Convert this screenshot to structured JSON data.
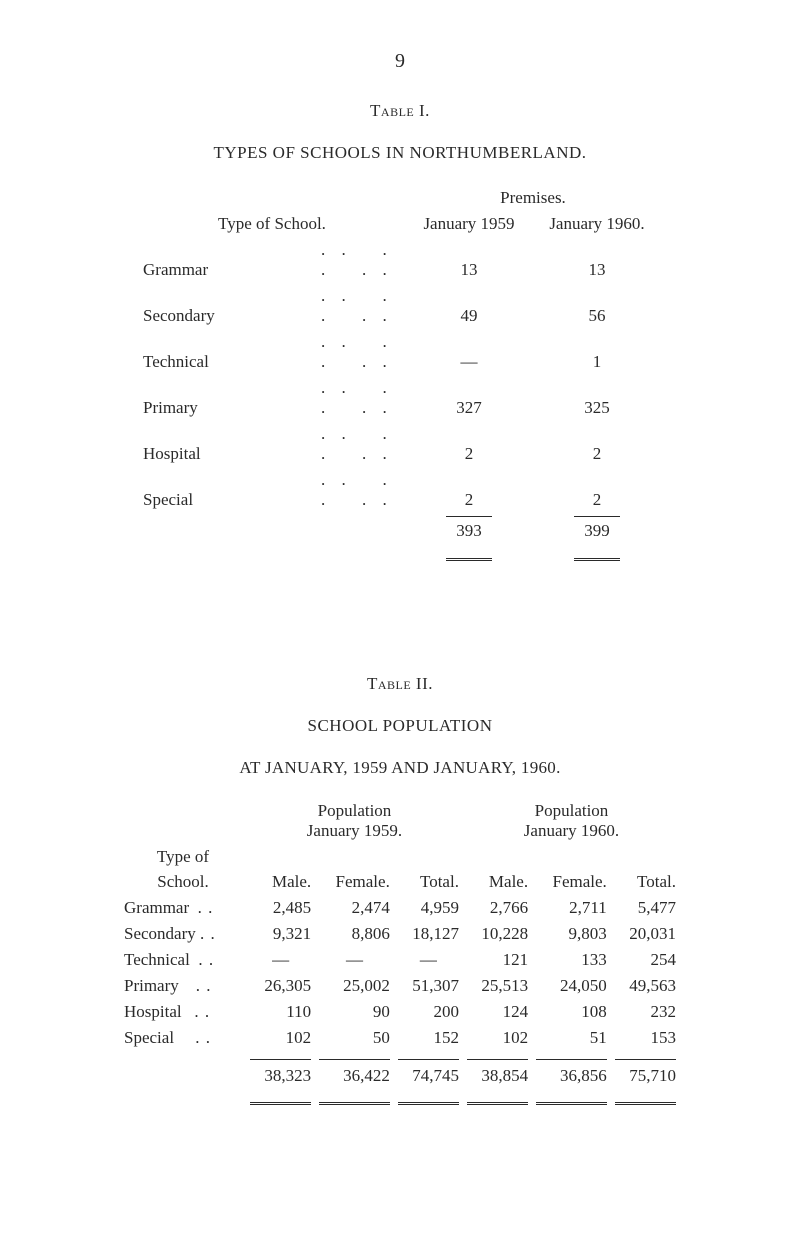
{
  "page_number": "9",
  "table1": {
    "label": "Table I.",
    "title": "TYPES OF SCHOOLS IN NORTHUMBERLAND.",
    "type_of_school": "Type of School.",
    "premises": "Premises.",
    "col1": "January 1959",
    "col2": "January 1960.",
    "rows": [
      {
        "label": "Grammar",
        "v1": "13",
        "v2": "13"
      },
      {
        "label": "Secondary",
        "v1": "49",
        "v2": "56"
      },
      {
        "label": "Technical",
        "v1": "—",
        "v2": "1"
      },
      {
        "label": "Primary",
        "v1": "327",
        "v2": "325"
      },
      {
        "label": "Hospital",
        "v1": "2",
        "v2": "2"
      },
      {
        "label": "Special",
        "v1": "2",
        "v2": "2"
      }
    ],
    "total": {
      "v1": "393",
      "v2": "399"
    }
  },
  "table2": {
    "label": "Table II.",
    "title": "SCHOOL POPULATION",
    "subtitle": "AT JANUARY, 1959 AND JANUARY, 1960.",
    "typeof": "Type of",
    "school": "School.",
    "pop1959": "Population\nJanuary 1959.",
    "pop1960": "Population\nJanuary 1960.",
    "cols": [
      "Male.",
      "Female.",
      "Total.",
      "Male.",
      "Female.",
      "Total."
    ],
    "rows": [
      {
        "label": "Grammar",
        "d": ". .",
        "v": [
          "2,485",
          "2,474",
          "4,959",
          "2,766",
          "2,711",
          "5,477"
        ]
      },
      {
        "label": "Secondary",
        "d": ". .",
        "v": [
          "9,321",
          "8,806",
          "18,127",
          "10,228",
          "9,803",
          "20,031"
        ]
      },
      {
        "label": "Technical",
        "d": ". .",
        "v": [
          "—",
          "—",
          "—",
          "121",
          "133",
          "254"
        ]
      },
      {
        "label": "Primary",
        "d": ". .",
        "v": [
          "26,305",
          "25,002",
          "51,307",
          "25,513",
          "24,050",
          "49,563"
        ]
      },
      {
        "label": "Hospital",
        "d": ". .",
        "v": [
          "110",
          "90",
          "200",
          "124",
          "108",
          "232"
        ]
      },
      {
        "label": "Special",
        "d": ". .",
        "v": [
          "102",
          "50",
          "152",
          "102",
          "51",
          "153"
        ]
      }
    ],
    "total": [
      "38,323",
      "36,422",
      "74,745",
      "38,854",
      "36,856",
      "75,710"
    ]
  }
}
